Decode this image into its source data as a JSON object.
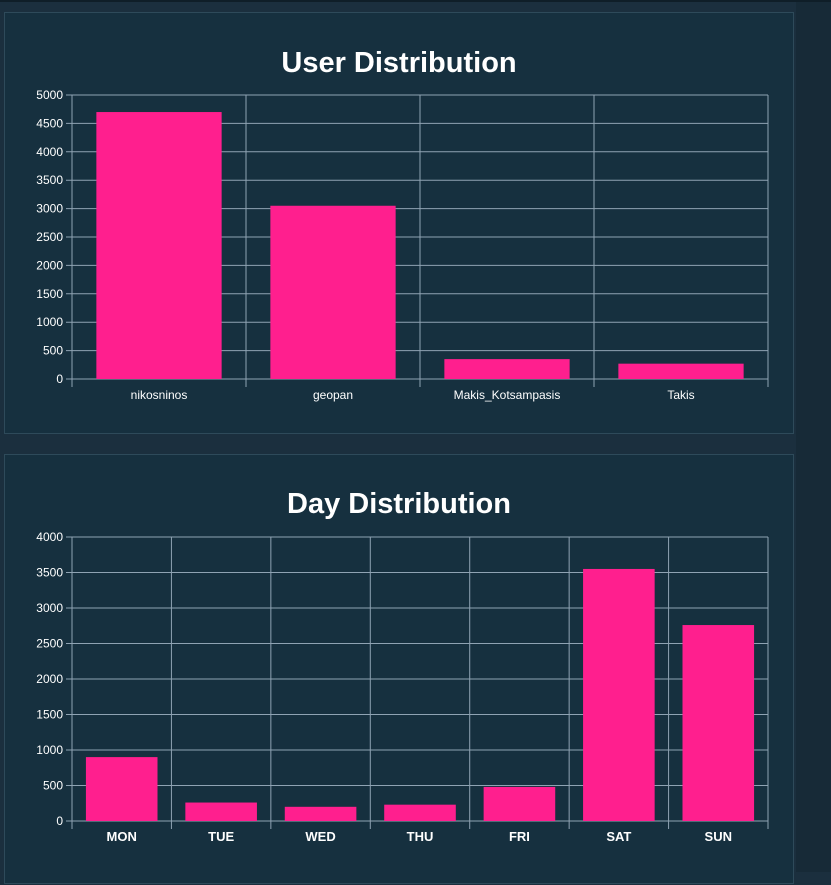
{
  "colors": {
    "bar": "#ff1f8e",
    "grid": "#8fa3b3",
    "background": "#16303f",
    "text": "#ffffff"
  },
  "chart_data": [
    {
      "type": "bar",
      "title": "User Distribution",
      "categories": [
        "nikosninos",
        "geopan",
        "Makis_Kotsampasis",
        "Takis"
      ],
      "values": [
        4700,
        3050,
        350,
        270
      ],
      "ylim": [
        0,
        5000
      ],
      "yticks": [
        0,
        500,
        1000,
        1500,
        2000,
        2500,
        3000,
        3500,
        4000,
        4500,
        5000
      ],
      "xlabel": "",
      "ylabel": "",
      "grid": true
    },
    {
      "type": "bar",
      "title": "Day Distribution",
      "categories": [
        "MON",
        "TUE",
        "WED",
        "THU",
        "FRI",
        "SAT",
        "SUN"
      ],
      "values": [
        900,
        260,
        200,
        230,
        480,
        3550,
        2760
      ],
      "ylim": [
        0,
        4000
      ],
      "yticks": [
        0,
        500,
        1000,
        1500,
        2000,
        2500,
        3000,
        3500,
        4000
      ],
      "xlabel": "",
      "ylabel": "",
      "grid": true
    }
  ]
}
